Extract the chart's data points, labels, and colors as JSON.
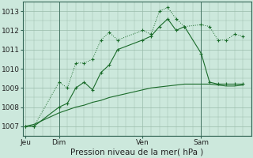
{
  "bg_color": "#cce8dc",
  "grid_color": "#99bbaa",
  "line_color": "#1a6b2a",
  "title": "Pression niveau de la mer( hPa )",
  "x_ticks_labels": [
    "Jeu",
    "Dim",
    "Ven",
    "Sam"
  ],
  "x_ticks_pos": [
    0,
    4,
    14,
    21
  ],
  "xlim": [
    -0.3,
    27
  ],
  "ylim": [
    1006.5,
    1013.5
  ],
  "yticks": [
    1007,
    1008,
    1009,
    1010,
    1011,
    1012,
    1013
  ],
  "vline_x1": 4,
  "vline_x2": 21,
  "series1_x": [
    0,
    1,
    4,
    5,
    6,
    7,
    8,
    9,
    10,
    11,
    14,
    15,
    16,
    17,
    18,
    19,
    21,
    22,
    23,
    24,
    25,
    26
  ],
  "series1_y": [
    1007.0,
    1007.0,
    1009.3,
    1009.0,
    1010.3,
    1010.3,
    1010.5,
    1011.5,
    1011.9,
    1011.5,
    1012.0,
    1011.8,
    1013.0,
    1013.2,
    1012.6,
    1012.2,
    1012.3,
    1012.2,
    1011.5,
    1011.5,
    1011.8,
    1011.7
  ],
  "series2_x": [
    0,
    1,
    4,
    5,
    6,
    7,
    8,
    9,
    10,
    11,
    14,
    15,
    16,
    17,
    18,
    19,
    21,
    22,
    23,
    24,
    25,
    26
  ],
  "series2_y": [
    1007.0,
    1007.0,
    1008.0,
    1008.2,
    1009.0,
    1009.3,
    1008.9,
    1009.8,
    1010.2,
    1011.0,
    1011.5,
    1011.7,
    1012.2,
    1012.6,
    1012.0,
    1012.2,
    1010.8,
    1009.3,
    1009.2,
    1009.2,
    1009.2,
    1009.2
  ],
  "series3_x": [
    0,
    1,
    2,
    3,
    4,
    5,
    6,
    7,
    8,
    9,
    10,
    11,
    12,
    13,
    14,
    15,
    16,
    17,
    18,
    19,
    20,
    21,
    22,
    23,
    24,
    25,
    26
  ],
  "series3_y": [
    1007.0,
    1007.1,
    1007.3,
    1007.5,
    1007.7,
    1007.85,
    1008.0,
    1008.1,
    1008.25,
    1008.35,
    1008.5,
    1008.6,
    1008.7,
    1008.8,
    1008.9,
    1009.0,
    1009.05,
    1009.1,
    1009.15,
    1009.2,
    1009.2,
    1009.2,
    1009.2,
    1009.15,
    1009.1,
    1009.1,
    1009.15
  ]
}
